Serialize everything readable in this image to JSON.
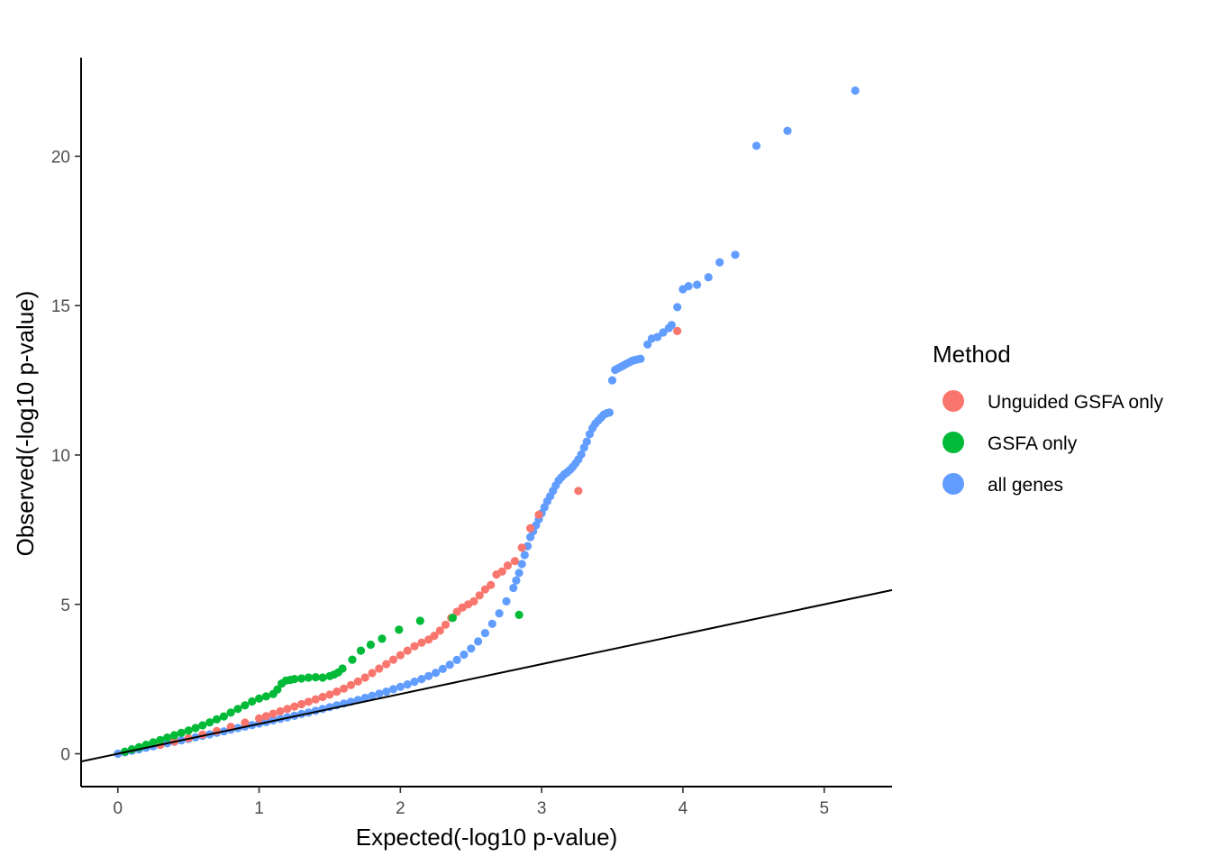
{
  "chart_data": {
    "type": "scatter",
    "title": "",
    "xlabel": "Expected(-log10 p-value)",
    "ylabel": "Observed(-log10 p-value)",
    "xlim": [
      -0.26,
      5.48
    ],
    "ylim": [
      -1.1,
      23.3
    ],
    "x_ticks": [
      0,
      1,
      2,
      3,
      4,
      5
    ],
    "x_tick_labels": [
      "0",
      "1",
      "2",
      "3",
      "4",
      "5"
    ],
    "y_ticks": [
      0,
      5,
      10,
      15,
      20
    ],
    "y_tick_labels": [
      "0",
      "5",
      "10",
      "15",
      "20"
    ],
    "grid": false,
    "reference_line": {
      "slope": 1,
      "intercept": 0,
      "color": "#000000"
    },
    "legend": {
      "title": "Method",
      "position": "right",
      "entries": [
        {
          "label": "Unguided GSFA only",
          "color": "#F8766D"
        },
        {
          "label": "GSFA only",
          "color": "#00BA38"
        },
        {
          "label": "all genes",
          "color": "#619CFF"
        }
      ]
    },
    "series": [
      {
        "name": "all genes",
        "color": "#619CFF",
        "x": [
          0,
          0.05,
          0.1,
          0.15,
          0.2,
          0.25,
          0.3,
          0.35,
          0.4,
          0.45,
          0.5,
          0.55,
          0.6,
          0.65,
          0.7,
          0.75,
          0.8,
          0.85,
          0.9,
          0.95,
          1.0,
          1.05,
          1.1,
          1.15,
          1.2,
          1.25,
          1.3,
          1.35,
          1.4,
          1.45,
          1.5,
          1.55,
          1.6,
          1.65,
          1.7,
          1.75,
          1.8,
          1.85,
          1.9,
          1.95,
          2.0,
          2.05,
          2.1,
          2.15,
          2.2,
          2.25,
          2.3,
          2.35,
          2.4,
          2.45,
          2.5,
          2.55,
          2.6,
          2.65,
          2.7,
          2.75,
          2.8,
          2.82,
          2.84,
          2.86,
          2.88,
          2.9,
          2.92,
          2.94,
          2.96,
          2.98,
          3.0,
          3.02,
          3.04,
          3.06,
          3.08,
          3.1,
          3.12,
          3.14,
          3.16,
          3.18,
          3.2,
          3.22,
          3.24,
          3.26,
          3.28,
          3.3,
          3.32,
          3.34,
          3.36,
          3.38,
          3.4,
          3.42,
          3.44,
          3.46,
          3.48,
          3.5,
          3.52,
          3.54,
          3.56,
          3.58,
          3.6,
          3.62,
          3.64,
          3.66,
          3.68,
          3.7,
          3.75,
          3.78,
          3.82,
          3.86,
          3.9,
          3.92,
          3.96,
          4.0,
          4.04,
          4.1,
          4.18,
          4.26,
          4.37,
          4.52,
          4.74,
          5.22
        ],
        "y": [
          0,
          0.05,
          0.1,
          0.15,
          0.2,
          0.25,
          0.3,
          0.35,
          0.4,
          0.45,
          0.5,
          0.55,
          0.6,
          0.65,
          0.7,
          0.75,
          0.81,
          0.86,
          0.91,
          0.96,
          1.01,
          1.06,
          1.12,
          1.17,
          1.22,
          1.27,
          1.33,
          1.38,
          1.44,
          1.5,
          1.56,
          1.62,
          1.68,
          1.74,
          1.8,
          1.87,
          1.94,
          2.01,
          2.08,
          2.16,
          2.24,
          2.32,
          2.41,
          2.5,
          2.6,
          2.71,
          2.84,
          2.98,
          3.14,
          3.32,
          3.52,
          3.76,
          4.04,
          4.35,
          4.7,
          5.1,
          5.55,
          5.8,
          6.05,
          6.35,
          6.65,
          6.95,
          7.25,
          7.45,
          7.65,
          7.85,
          8.05,
          8.25,
          8.45,
          8.62,
          8.8,
          8.98,
          9.15,
          9.25,
          9.35,
          9.42,
          9.5,
          9.6,
          9.72,
          9.85,
          10.02,
          10.25,
          10.45,
          10.7,
          10.9,
          11.05,
          11.15,
          11.25,
          11.35,
          11.4,
          11.42,
          12.5,
          12.85,
          12.9,
          12.95,
          13.0,
          13.05,
          13.1,
          13.15,
          13.18,
          13.2,
          13.22,
          13.7,
          13.9,
          13.95,
          14.1,
          14.25,
          14.35,
          14.95,
          15.55,
          15.65,
          15.7,
          15.95,
          16.45,
          16.7,
          20.35,
          20.85,
          22.2
        ]
      },
      {
        "name": "Unguided GSFA only",
        "color": "#F8766D",
        "x": [
          0.3,
          0.4,
          0.5,
          0.6,
          0.7,
          0.8,
          0.9,
          1.0,
          1.05,
          1.1,
          1.15,
          1.2,
          1.25,
          1.3,
          1.35,
          1.4,
          1.45,
          1.5,
          1.55,
          1.6,
          1.65,
          1.7,
          1.75,
          1.8,
          1.85,
          1.9,
          1.95,
          2.0,
          2.05,
          2.1,
          2.15,
          2.2,
          2.24,
          2.28,
          2.32,
          2.36,
          2.4,
          2.44,
          2.48,
          2.52,
          2.56,
          2.6,
          2.64,
          2.68,
          2.72,
          2.76,
          2.81,
          2.86,
          2.92,
          2.98,
          3.26,
          3.96
        ],
        "y": [
          0.3,
          0.41,
          0.52,
          0.64,
          0.76,
          0.9,
          1.04,
          1.18,
          1.26,
          1.34,
          1.42,
          1.5,
          1.58,
          1.66,
          1.74,
          1.82,
          1.9,
          1.98,
          2.08,
          2.18,
          2.3,
          2.42,
          2.55,
          2.7,
          2.85,
          3.0,
          3.15,
          3.3,
          3.45,
          3.6,
          3.72,
          3.82,
          3.95,
          4.12,
          4.32,
          4.55,
          4.75,
          4.9,
          5.0,
          5.1,
          5.3,
          5.5,
          5.65,
          6.0,
          6.1,
          6.3,
          6.45,
          6.9,
          7.55,
          8.0,
          8.8,
          14.15
        ]
      },
      {
        "name": "GSFA only",
        "color": "#00BA38",
        "x": [
          0.05,
          0.1,
          0.15,
          0.2,
          0.25,
          0.3,
          0.35,
          0.4,
          0.45,
          0.5,
          0.55,
          0.6,
          0.65,
          0.7,
          0.75,
          0.8,
          0.85,
          0.9,
          0.95,
          1.0,
          1.05,
          1.1,
          1.13,
          1.16,
          1.19,
          1.22,
          1.25,
          1.3,
          1.35,
          1.4,
          1.45,
          1.5,
          1.53,
          1.56,
          1.59,
          1.66,
          1.72,
          1.79,
          1.87,
          1.99,
          2.14,
          2.37,
          2.84
        ],
        "y": [
          0.07,
          0.15,
          0.22,
          0.3,
          0.38,
          0.46,
          0.54,
          0.62,
          0.7,
          0.78,
          0.86,
          0.95,
          1.05,
          1.15,
          1.25,
          1.38,
          1.5,
          1.62,
          1.75,
          1.85,
          1.92,
          2.0,
          2.15,
          2.35,
          2.45,
          2.47,
          2.5,
          2.52,
          2.55,
          2.56,
          2.55,
          2.6,
          2.65,
          2.72,
          2.85,
          3.15,
          3.45,
          3.65,
          3.85,
          4.15,
          4.45,
          4.55,
          4.65
        ]
      }
    ]
  }
}
